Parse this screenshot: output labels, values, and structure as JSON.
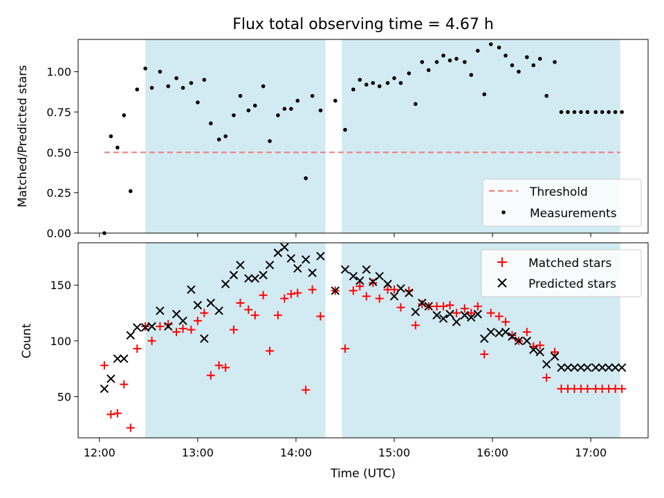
{
  "chart_data": [
    {
      "type": "scatter",
      "title": "Flux total observing time = 4.67 h",
      "xlabel": "",
      "ylabel": "Matched/Predicted stars",
      "xlim": [
        "11:47",
        "17:35"
      ],
      "ylim": [
        0.0,
        1.2
      ],
      "y_ticks": [
        "0.00",
        "0.25",
        "0.50",
        "0.75",
        "1.00"
      ],
      "grid": false,
      "legend_position": "lower-right",
      "shaded_intervals": [
        [
          "12:28",
          "14:18"
        ],
        [
          "14:28",
          "17:18"
        ]
      ],
      "shade_color": "#add8e6",
      "threshold": {
        "name": "Threshold",
        "value": 0.5,
        "x_range": [
          "12:03",
          "17:18"
        ],
        "color": "#f08080"
      },
      "series": [
        {
          "name": "Measurements",
          "color": "#000000",
          "x": [
            "12:03",
            "12:07",
            "12:11",
            "12:15",
            "12:19",
            "12:23",
            "12:28",
            "12:32",
            "12:37",
            "12:42",
            "12:47",
            "12:51",
            "12:56",
            "13:00",
            "13:04",
            "13:08",
            "13:13",
            "13:17",
            "13:22",
            "13:26",
            "13:31",
            "13:35",
            "13:40",
            "13:44",
            "13:49",
            "13:53",
            "13:57",
            "14:01",
            "14:06",
            "14:10",
            "14:15",
            "14:24",
            "14:30",
            "14:35",
            "14:39",
            "14:43",
            "14:47",
            "14:51",
            "14:56",
            "15:00",
            "15:04",
            "15:09",
            "15:13",
            "15:17",
            "15:21",
            "15:26",
            "15:30",
            "15:34",
            "15:38",
            "15:43",
            "15:47",
            "15:51",
            "15:55",
            "15:59",
            "16:04",
            "16:08",
            "16:12",
            "16:16",
            "16:21",
            "16:25",
            "16:29",
            "16:33",
            "16:38",
            "16:42",
            "16:46",
            "16:50",
            "16:54",
            "16:58",
            "17:03",
            "17:07",
            "17:11",
            "17:15",
            "17:19"
          ],
          "y": [
            0.0,
            0.6,
            0.53,
            0.73,
            0.26,
            0.89,
            1.02,
            0.9,
            1.0,
            0.91,
            0.96,
            0.9,
            0.93,
            0.81,
            0.95,
            0.68,
            0.58,
            0.6,
            0.73,
            0.85,
            0.76,
            0.79,
            0.91,
            0.57,
            0.73,
            0.77,
            0.77,
            0.82,
            0.34,
            0.85,
            0.76,
            0.82,
            0.64,
            0.89,
            0.95,
            0.92,
            0.93,
            0.91,
            0.93,
            0.96,
            0.93,
            0.99,
            0.8,
            1.06,
            1.01,
            1.06,
            1.1,
            1.07,
            1.08,
            1.06,
            0.98,
            1.13,
            0.86,
            1.17,
            1.15,
            1.1,
            1.04,
            1.0,
            1.09,
            1.04,
            1.08,
            0.85,
            1.06,
            0.75,
            0.75,
            0.75,
            0.75,
            0.75,
            0.75,
            0.75,
            0.75,
            0.75,
            0.75
          ]
        }
      ]
    },
    {
      "type": "scatter",
      "title": "",
      "xlabel": "Time (UTC)",
      "ylabel": "Count",
      "xlim": [
        "11:47",
        "17:35"
      ],
      "ylim": [
        13,
        188
      ],
      "x_ticks": [
        "12:00",
        "13:00",
        "14:00",
        "15:00",
        "16:00",
        "17:00"
      ],
      "y_ticks": [
        "50",
        "100",
        "150"
      ],
      "grid": false,
      "legend_position": "upper-right",
      "shaded_intervals": [
        [
          "12:28",
          "14:18"
        ],
        [
          "14:28",
          "17:18"
        ]
      ],
      "shade_color": "#add8e6",
      "series": [
        {
          "name": "Matched stars",
          "marker": "plus",
          "color": "#ff0000",
          "x": [
            "12:03",
            "12:07",
            "12:11",
            "12:15",
            "12:19",
            "12:23",
            "12:28",
            "12:32",
            "12:37",
            "12:42",
            "12:47",
            "12:51",
            "12:56",
            "13:00",
            "13:04",
            "13:08",
            "13:13",
            "13:17",
            "13:22",
            "13:26",
            "13:31",
            "13:35",
            "13:40",
            "13:44",
            "13:49",
            "13:53",
            "13:57",
            "14:01",
            "14:06",
            "14:10",
            "14:15",
            "14:24",
            "14:30",
            "14:35",
            "14:39",
            "14:43",
            "14:47",
            "14:51",
            "14:56",
            "15:00",
            "15:04",
            "15:09",
            "15:13",
            "15:17",
            "15:21",
            "15:26",
            "15:30",
            "15:34",
            "15:38",
            "15:43",
            "15:47",
            "15:51",
            "15:55",
            "15:59",
            "16:04",
            "16:08",
            "16:12",
            "16:16",
            "16:21",
            "16:25",
            "16:29",
            "16:33",
            "16:38",
            "16:42",
            "16:46",
            "16:50",
            "16:54",
            "16:58",
            "17:03",
            "17:07",
            "17:11",
            "17:15",
            "17:19"
          ],
          "y": [
            78,
            34,
            35,
            61,
            22,
            93,
            113,
            100,
            113,
            115,
            108,
            111,
            110,
            118,
            125,
            69,
            78,
            76,
            110,
            134,
            128,
            123,
            141,
            91,
            123,
            138,
            142,
            143,
            56,
            146,
            122,
            145,
            93,
            145,
            149,
            140,
            152,
            138,
            146,
            146,
            130,
            145,
            114,
            133,
            131,
            131,
            131,
            132,
            125,
            129,
            125,
            131,
            88,
            125,
            122,
            117,
            105,
            100,
            108,
            95,
            96,
            67,
            90,
            57,
            57,
            57,
            57,
            57,
            57,
            57,
            57,
            57,
            57
          ]
        },
        {
          "name": "Predicted stars",
          "marker": "x",
          "color": "#000000",
          "x": [
            "12:03",
            "12:07",
            "12:11",
            "12:15",
            "12:19",
            "12:23",
            "12:28",
            "12:32",
            "12:37",
            "12:42",
            "12:47",
            "12:51",
            "12:56",
            "13:00",
            "13:04",
            "13:08",
            "13:13",
            "13:17",
            "13:22",
            "13:26",
            "13:31",
            "13:35",
            "13:40",
            "13:44",
            "13:49",
            "13:53",
            "13:57",
            "14:01",
            "14:06",
            "14:10",
            "14:15",
            "14:24",
            "14:30",
            "14:35",
            "14:39",
            "14:43",
            "14:47",
            "14:51",
            "14:56",
            "15:00",
            "15:04",
            "15:09",
            "15:13",
            "15:17",
            "15:21",
            "15:26",
            "15:30",
            "15:34",
            "15:38",
            "15:43",
            "15:47",
            "15:51",
            "15:55",
            "15:59",
            "16:04",
            "16:08",
            "16:12",
            "16:16",
            "16:21",
            "16:25",
            "16:29",
            "16:33",
            "16:38",
            "16:42",
            "16:46",
            "16:50",
            "16:54",
            "16:58",
            "17:03",
            "17:07",
            "17:11",
            "17:15",
            "17:19"
          ],
          "y": [
            57,
            66,
            84,
            84,
            105,
            112,
            112,
            113,
            127,
            113,
            124,
            118,
            146,
            132,
            102,
            134,
            127,
            151,
            159,
            168,
            156,
            156,
            159,
            168,
            179,
            184,
            174,
            165,
            173,
            161,
            176,
            145,
            164,
            158,
            154,
            164,
            153,
            158,
            151,
            140,
            147,
            143,
            126,
            134,
            131,
            123,
            120,
            124,
            117,
            123,
            121,
            124,
            102,
            108,
            107,
            108,
            104,
            100,
            100,
            92,
            90,
            79,
            86,
            76,
            76,
            76,
            76,
            76,
            76,
            76,
            76,
            76,
            76
          ]
        }
      ]
    }
  ]
}
